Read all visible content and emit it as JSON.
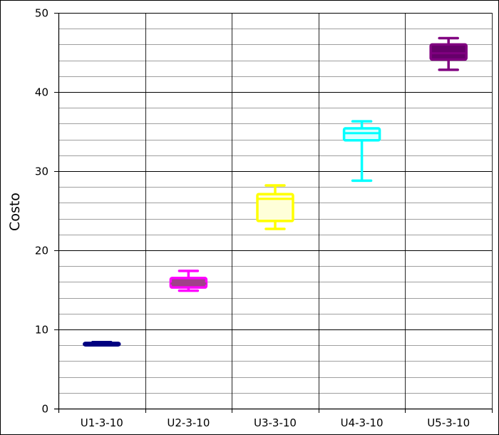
{
  "chart_data": {
    "type": "boxplot",
    "title": "",
    "xlabel": "",
    "ylabel": "Costo",
    "ylim": [
      0,
      50
    ],
    "y_ticks": [
      0,
      10,
      20,
      30,
      40,
      50
    ],
    "y_minor_step": 2,
    "grid": true,
    "legend": "none",
    "categories": [
      "U1-3-10",
      "U2-3-10",
      "U3-3-10",
      "U4-3-10",
      "U5-3-10"
    ],
    "boxes": [
      {
        "category": "U1-3-10",
        "min": 8.0,
        "q1": 8.0,
        "median": 8.2,
        "q3": 8.3,
        "max": 8.4,
        "stroke": "#000080",
        "fill": "#000080",
        "median_color": "#000080"
      },
      {
        "category": "U2-3-10",
        "min": 14.9,
        "q1": 15.3,
        "median": 15.8,
        "q3": 16.5,
        "max": 17.4,
        "stroke": "#FF00FF",
        "fill": "#A0418A",
        "median_color": "#A0418A"
      },
      {
        "category": "U3-3-10",
        "min": 22.7,
        "q1": 23.7,
        "median": 26.5,
        "q3": 27.1,
        "max": 28.2,
        "stroke": "#FFFF00",
        "fill": "#FFFFD9",
        "median_color": "#FFFF00"
      },
      {
        "category": "U4-3-10",
        "min": 28.8,
        "q1": 33.9,
        "median": 34.8,
        "q3": 35.4,
        "max": 36.3,
        "stroke": "#00FFFF",
        "fill": "#D9FFFF",
        "median_color": "#00FFFF"
      },
      {
        "category": "U5-3-10",
        "min": 42.8,
        "q1": 44.1,
        "median": 44.9,
        "q3": 46.0,
        "max": 46.8,
        "stroke": "#800080",
        "fill": "#66006A",
        "median_color": "#800080"
      }
    ]
  }
}
